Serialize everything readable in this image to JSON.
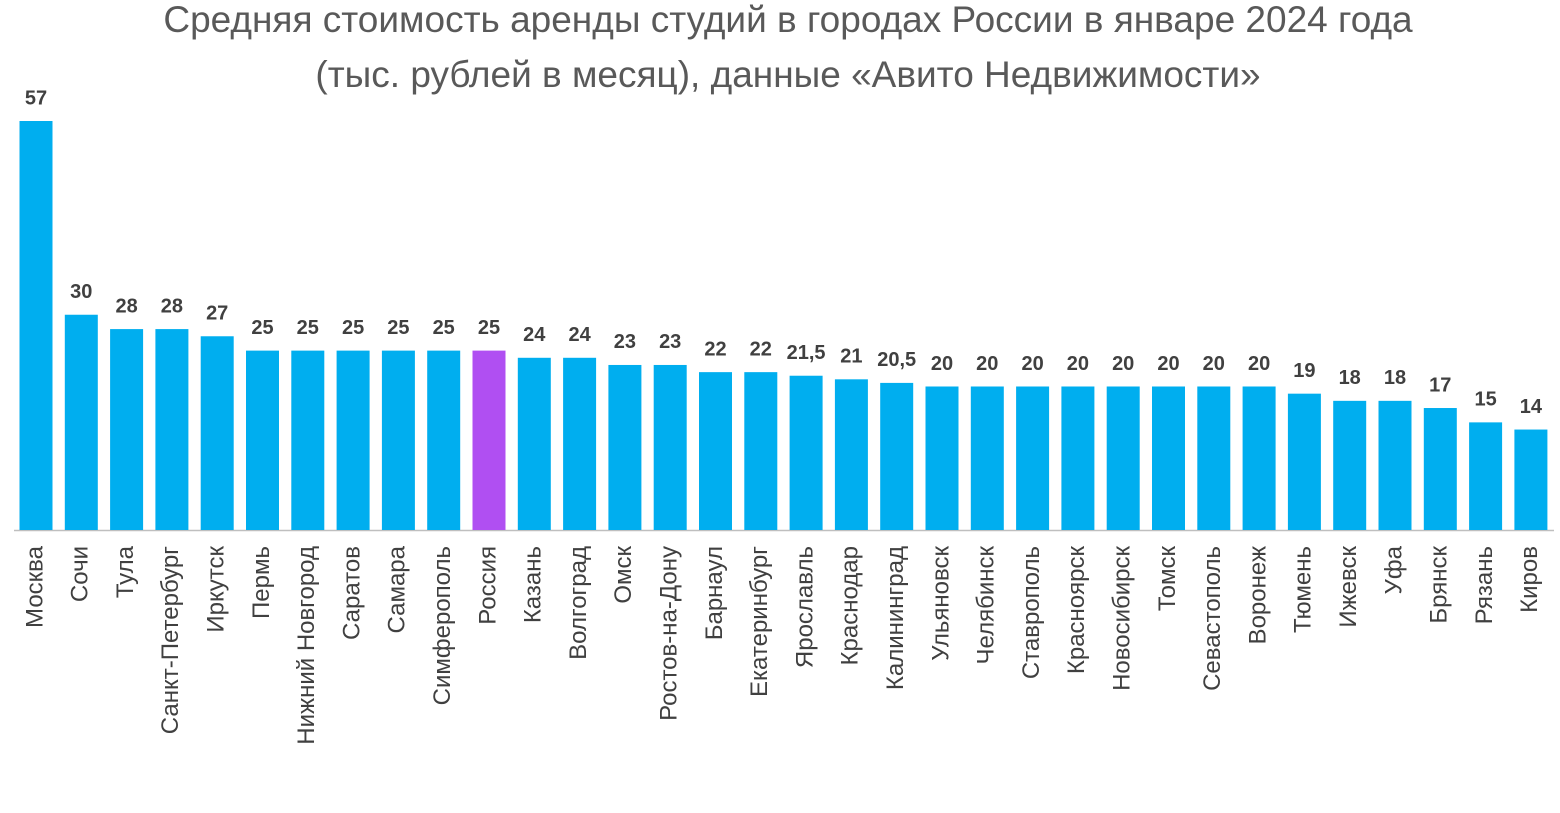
{
  "chart_data": {
    "type": "bar",
    "title": [
      "Средняя стоимость аренды студий в городах России в январе 2024 года",
      "(тыс. рублей в месяц), данные «Авито Недвижимости»"
    ],
    "categories": [
      "Москва",
      "Сочи",
      "Тула",
      "Санкт-Петербург",
      "Иркутск",
      "Пермь",
      "Нижний Новгород",
      "Саратов",
      "Самара",
      "Симферополь",
      "Россия",
      "Казань",
      "Волгоград",
      "Омск",
      "Ростов-на-Дону",
      "Барнаул",
      "Екатеринбург",
      "Ярославль",
      "Краснодар",
      "Калининград",
      "Ульяновск",
      "Челябинск",
      "Ставрополь",
      "Красноярск",
      "Новосибирск",
      "Томск",
      "Севастополь",
      "Воронеж",
      "Тюмень",
      "Ижевск",
      "Уфа",
      "Брянск",
      "Рязань",
      "Киров"
    ],
    "values": [
      57,
      30,
      28,
      28,
      27,
      25,
      25,
      25,
      25,
      25,
      25,
      24,
      24,
      23,
      23,
      22,
      22,
      21.5,
      21,
      20.5,
      20,
      20,
      20,
      20,
      20,
      20,
      20,
      20,
      19,
      18,
      18,
      17,
      15,
      14
    ],
    "value_labels": [
      "57",
      "30",
      "28",
      "28",
      "27",
      "25",
      "25",
      "25",
      "25",
      "25",
      "25",
      "24",
      "24",
      "23",
      "23",
      "22",
      "22",
      "21,5",
      "21",
      "20,5",
      "20",
      "20",
      "20",
      "20",
      "20",
      "20",
      "20",
      "20",
      "19",
      "18",
      "18",
      "17",
      "15",
      "14"
    ],
    "colors": [
      "#00aeef",
      "#00aeef",
      "#00aeef",
      "#00aeef",
      "#00aeef",
      "#00aeef",
      "#00aeef",
      "#00aeef",
      "#00aeef",
      "#00aeef",
      "#b04ff2",
      "#00aeef",
      "#00aeef",
      "#00aeef",
      "#00aeef",
      "#00aeef",
      "#00aeef",
      "#00aeef",
      "#00aeef",
      "#00aeef",
      "#00aeef",
      "#00aeef",
      "#00aeef",
      "#00aeef",
      "#00aeef",
      "#00aeef",
      "#00aeef",
      "#00aeef",
      "#00aeef",
      "#00aeef",
      "#00aeef",
      "#00aeef",
      "#00aeef",
      "#00aeef"
    ]
  }
}
